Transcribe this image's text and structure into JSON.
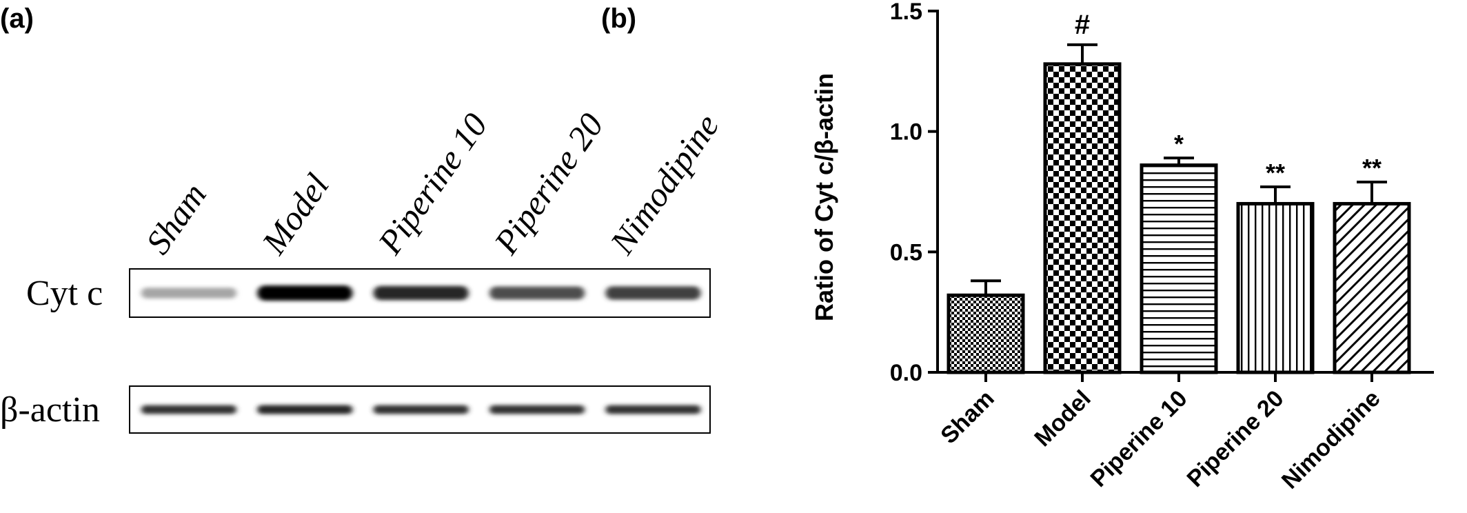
{
  "figure": {
    "panel_a_label": "(a)",
    "panel_b_label": "(b)"
  },
  "blot": {
    "lanes": [
      "Sham",
      "Model",
      "Piperine 10",
      "Piperine 20",
      "Nimodipine"
    ],
    "rows": [
      {
        "label": "Cyt c",
        "intensities": [
          0.35,
          1.0,
          0.85,
          0.7,
          0.75
        ]
      },
      {
        "label": "β-actin",
        "intensities": [
          0.8,
          0.85,
          0.8,
          0.8,
          0.8
        ]
      }
    ]
  },
  "chart_data": {
    "type": "bar",
    "categories": [
      "Sham",
      "Model",
      "Piperine 10",
      "Piperine 20",
      "Nimodipine"
    ],
    "values": [
      0.32,
      1.28,
      0.86,
      0.7,
      0.7
    ],
    "errors": [
      0.06,
      0.08,
      0.03,
      0.07,
      0.09
    ],
    "annotations": [
      "",
      "#",
      "*",
      "**",
      "**"
    ],
    "patterns": [
      "fine-checker",
      "checker",
      "horizontal-lines",
      "vertical-lines",
      "diagonal-lines"
    ],
    "ylabel": "Ratio of Cyt c/β-actin",
    "xlabel": "",
    "ylim": [
      0,
      1.5
    ],
    "yticks": [
      "0.0",
      "0.5",
      "1.0",
      "1.5"
    ],
    "ytick_values": [
      0,
      0.5,
      1.0,
      1.5
    ],
    "grid": false,
    "bar_color": "#000000"
  }
}
